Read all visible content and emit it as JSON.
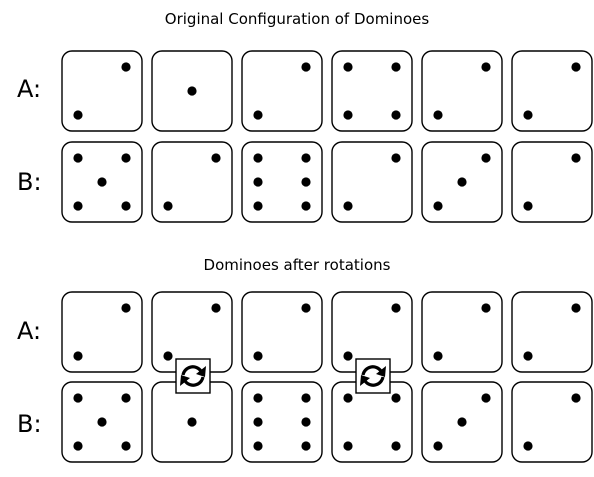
{
  "sections": [
    {
      "title": "Original Configuration of Dominoes",
      "rows": [
        {
          "label": "A:",
          "tiles": [
            2,
            1,
            2,
            4,
            2,
            2
          ]
        },
        {
          "label": "B:",
          "tiles": [
            5,
            2,
            6,
            2,
            3,
            2
          ]
        }
      ]
    },
    {
      "title": "Dominoes after rotations",
      "rows": [
        {
          "label": "A:",
          "tiles": [
            2,
            2,
            2,
            2,
            2,
            2
          ]
        },
        {
          "label": "B:",
          "tiles": [
            5,
            1,
            6,
            4,
            3,
            2
          ]
        }
      ]
    }
  ],
  "rotated_columns": [
    2,
    4
  ],
  "rotate_icon": "rotate-arrows-icon"
}
